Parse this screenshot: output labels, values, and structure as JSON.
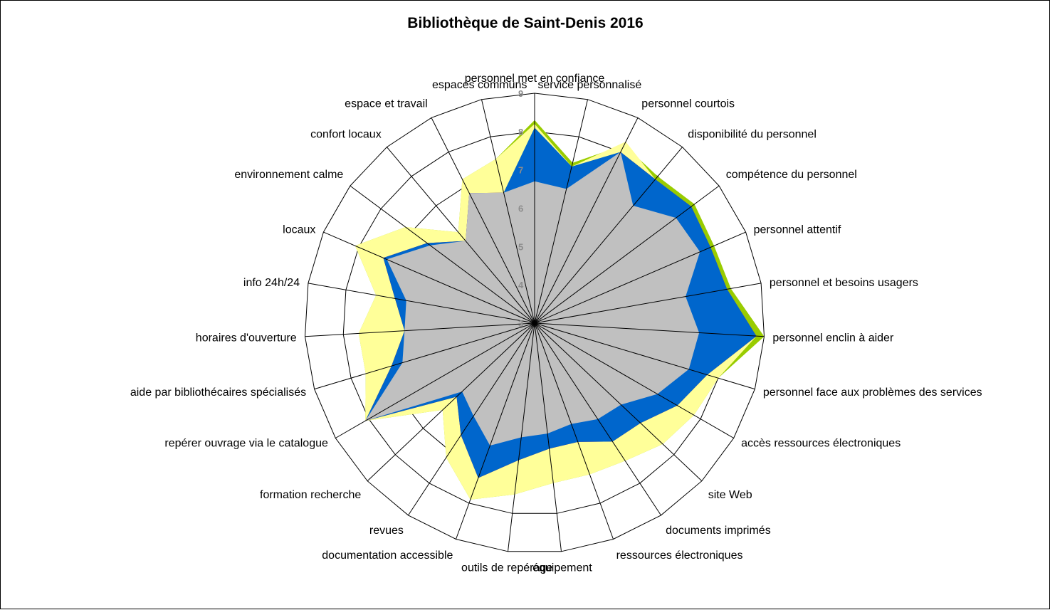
{
  "chart_data": {
    "type": "radar",
    "title": "Bibliothèque de Saint-Denis 2016",
    "r_min": 3,
    "r_max": 9,
    "ticks": [
      "3",
      "4",
      "5",
      "6",
      "7",
      "8",
      "9"
    ],
    "grid": true,
    "categories": [
      "personnel met en confiance",
      "service personnalisé",
      "personnel courtois",
      "disponibilité du personnel",
      "compétence du personnel",
      "personnel attentif",
      "personnel et besoins usagers",
      "personnel enclin à aider",
      "personnel face aux problèmes des services",
      "accès ressources électroniques",
      "site Web",
      "documents imprimés",
      "ressources électroniques",
      "équipement",
      "outils de repérage",
      "documentation accessible",
      "revues",
      "formation recherche",
      "repérer ouvrage via le catalogue",
      "aide par bibliothécaires spécialisés",
      "horaires d'ouverture",
      "info 24h/24",
      "locaux",
      "environnement calme",
      "confort locaux",
      "espace et travail",
      "espaces communs"
    ],
    "series": [
      {
        "color": "#99cc00",
        "values": [
          8.3,
          7.3,
          8.2,
          8.0,
          8.2,
          8.1,
          8.2,
          9.0,
          8.0,
          7.8,
          7.6,
          7.3,
          7.2,
          7.2,
          7.5,
          7.9,
          7.2,
          6.3,
          8.1,
          7.6,
          7.6,
          7.2,
          8.1,
          7.2,
          6.1,
          7.2,
          7.4
        ]
      },
      {
        "color": "#ffff99",
        "values": [
          8.2,
          7.2,
          8.3,
          7.9,
          8.1,
          8.0,
          8.1,
          8.8,
          8.0,
          7.8,
          7.6,
          7.3,
          7.2,
          7.2,
          7.5,
          7.9,
          7.2,
          6.3,
          8.1,
          7.6,
          7.6,
          7.2,
          8.1,
          7.2,
          6.1,
          7.2,
          7.4
        ]
      },
      {
        "color": "#ff0000",
        "values": [
          6.7,
          6.5,
          8.0,
          7.9,
          8.1,
          8.0,
          8.1,
          8.8,
          7.7,
          7.3,
          6.8,
          6.7,
          6.3,
          6.3,
          6.6,
          7.3,
          6.5,
          5.8,
          8.1,
          6.9,
          6.4,
          6.7,
          7.3,
          6.5,
          5.8,
          6.8,
          6.5
        ]
      },
      {
        "color": "#0066cc",
        "values": [
          8.1,
          7.2,
          8.0,
          7.9,
          8.1,
          8.0,
          8.1,
          8.8,
          7.7,
          7.3,
          6.8,
          6.7,
          6.3,
          6.3,
          6.6,
          7.3,
          6.5,
          5.8,
          8.1,
          6.9,
          6.4,
          6.7,
          7.3,
          6.5,
          5.8,
          6.8,
          6.5
        ]
      },
      {
        "color": "#c0c0c0",
        "values": [
          6.7,
          6.6,
          8.0,
          7.0,
          7.6,
          7.7,
          7.0,
          7.3,
          7.2,
          6.7,
          6.1,
          6.0,
          5.8,
          5.9,
          6.0,
          6.4,
          5.9,
          5.6,
          8.1,
          6.6,
          6.4,
          6.4,
          7.2,
          6.4,
          5.8,
          6.8,
          6.5
        ]
      }
    ]
  }
}
